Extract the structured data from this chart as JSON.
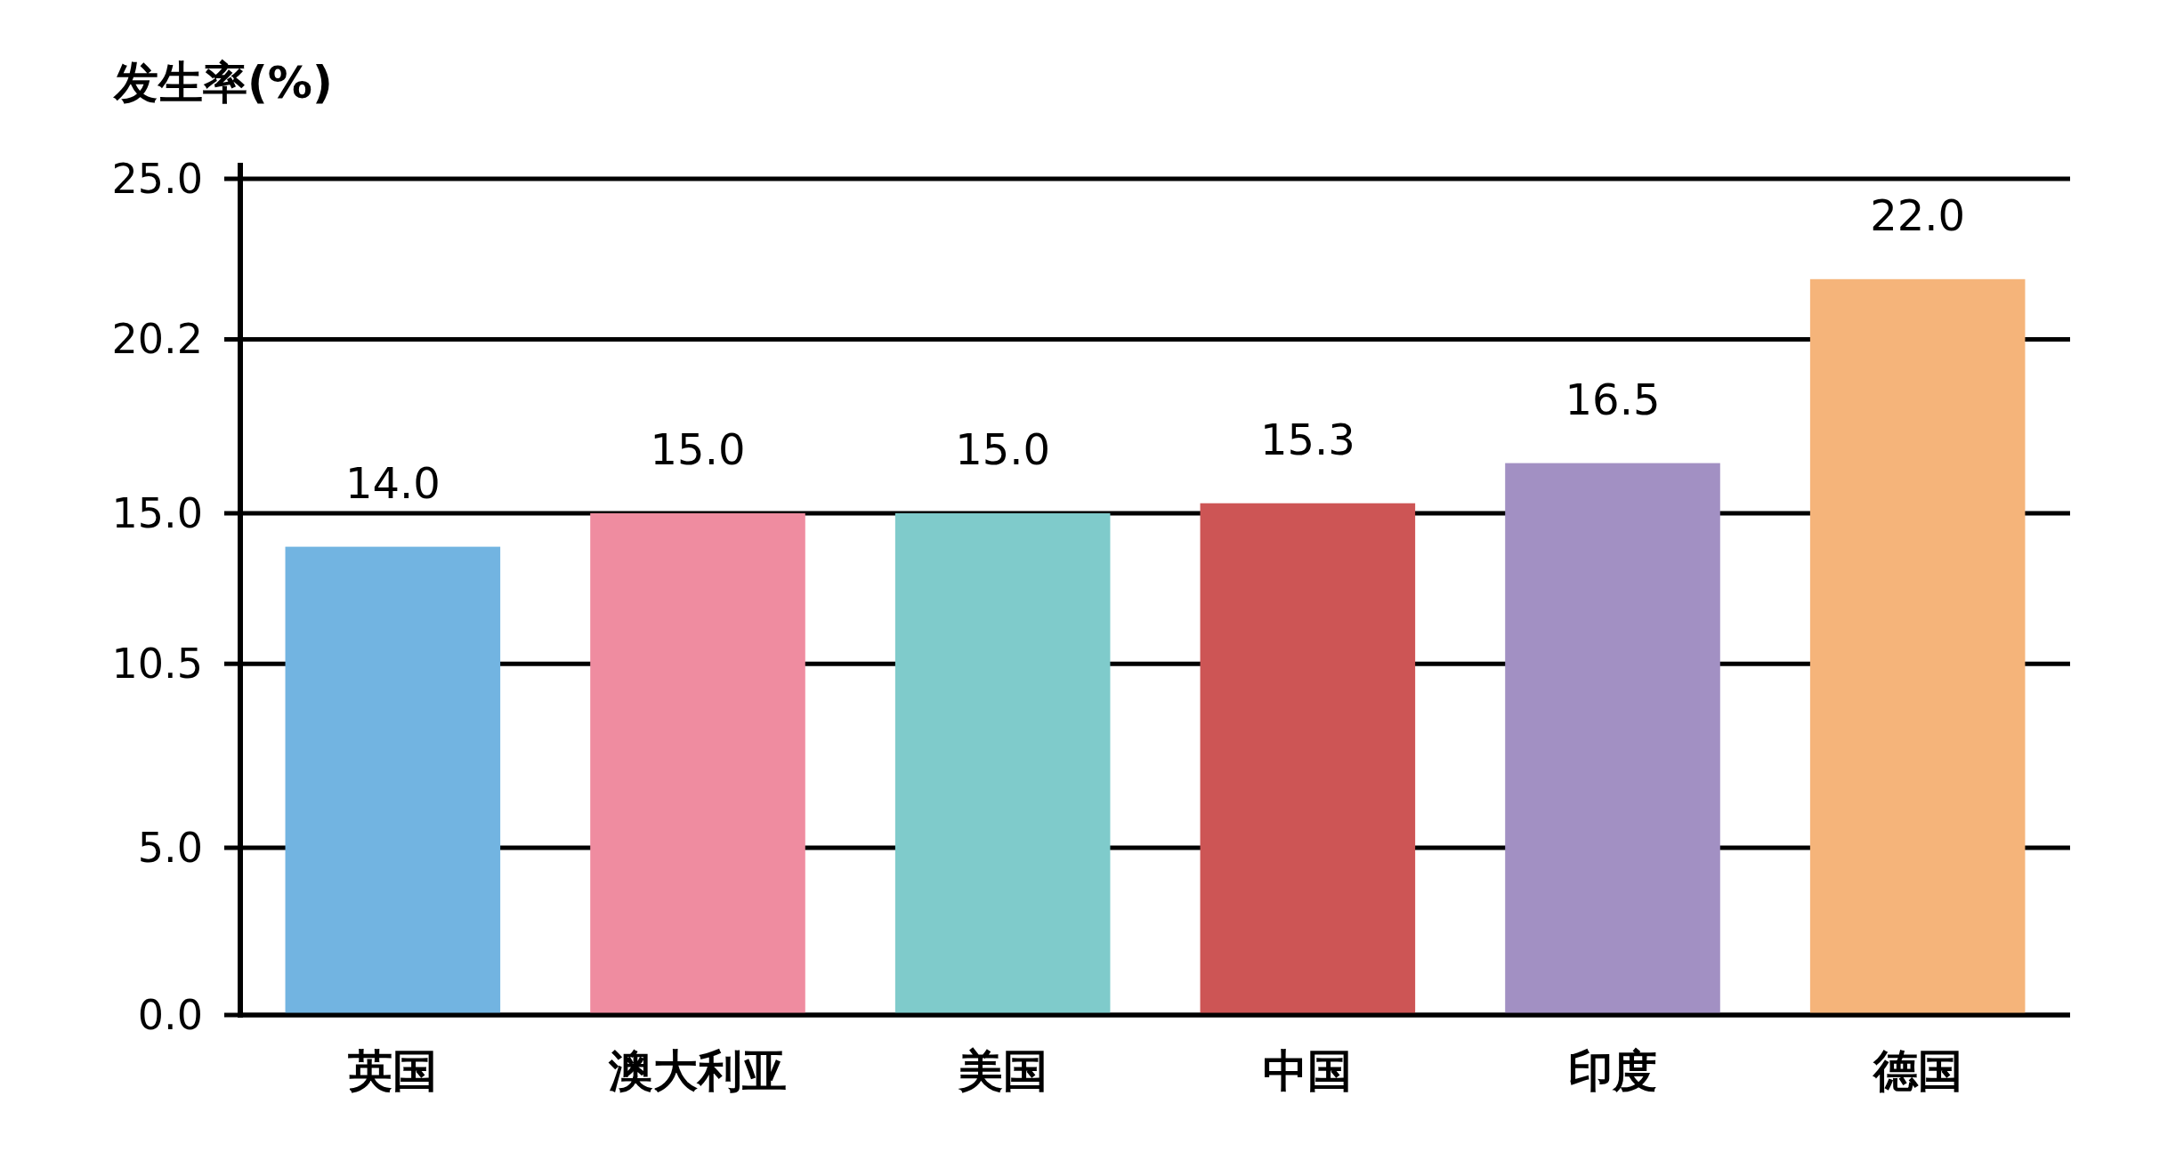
{
  "chart_data": {
    "type": "bar",
    "ylabel": "发生率(%)",
    "categories": [
      "英国",
      "澳大利亚",
      "美国",
      "中国",
      "印度",
      "德国"
    ],
    "values": [
      14.0,
      15.0,
      15.0,
      15.3,
      16.5,
      22.0
    ],
    "value_labels": [
      "14.0",
      "15.0",
      "15.0",
      "15.3",
      "16.5",
      "22.0"
    ],
    "colors": [
      "#72b4e1",
      "#ef8ca0",
      "#7fcbcb",
      "#cd5555",
      "#a290c3",
      "#f5b47a"
    ],
    "ylim": [
      0,
      25
    ],
    "yticks": [
      {
        "value": 0,
        "label": "0.0"
      },
      {
        "value": 5,
        "label": "5.0"
      },
      {
        "value": 10.5,
        "label": "10.5"
      },
      {
        "value": 15,
        "label": "15.0"
      },
      {
        "value": 20.2,
        "label": "20.2"
      },
      {
        "value": 25,
        "label": "25.0"
      }
    ],
    "grid": "y"
  }
}
